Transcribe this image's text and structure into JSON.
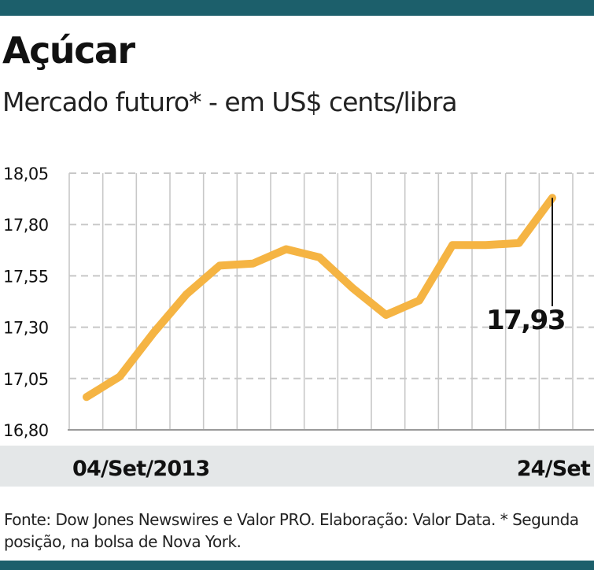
{
  "header": {
    "title": "Açúcar",
    "subtitle": "Mercado futuro* - em US$ cents/libra"
  },
  "footer": {
    "source": "Fonte: Dow Jones Newswires e Valor PRO. Elaboração: Valor Data. * Segunda posição, na bolsa de Nova York."
  },
  "colors": {
    "accent_bar": "#1c5f6b",
    "line": "#f5b443",
    "grid": "#c8c8c8",
    "axis_band": "#e4e7e8"
  },
  "chart_data": {
    "type": "line",
    "x_start_label": "04/Set/2013",
    "x_end_label": "24/Set",
    "y_ticks": [
      "18,05",
      "17,80",
      "17,55",
      "17,30",
      "17,05",
      "16,80"
    ],
    "ylim": [
      16.8,
      18.05
    ],
    "grid": true,
    "last_value_label": "17,93",
    "series": [
      {
        "values": [
          16.96,
          17.06,
          17.27,
          17.46,
          17.6,
          17.61,
          17.68,
          17.64,
          17.49,
          17.36,
          17.43,
          17.7,
          17.7,
          17.71,
          17.93
        ]
      }
    ]
  }
}
